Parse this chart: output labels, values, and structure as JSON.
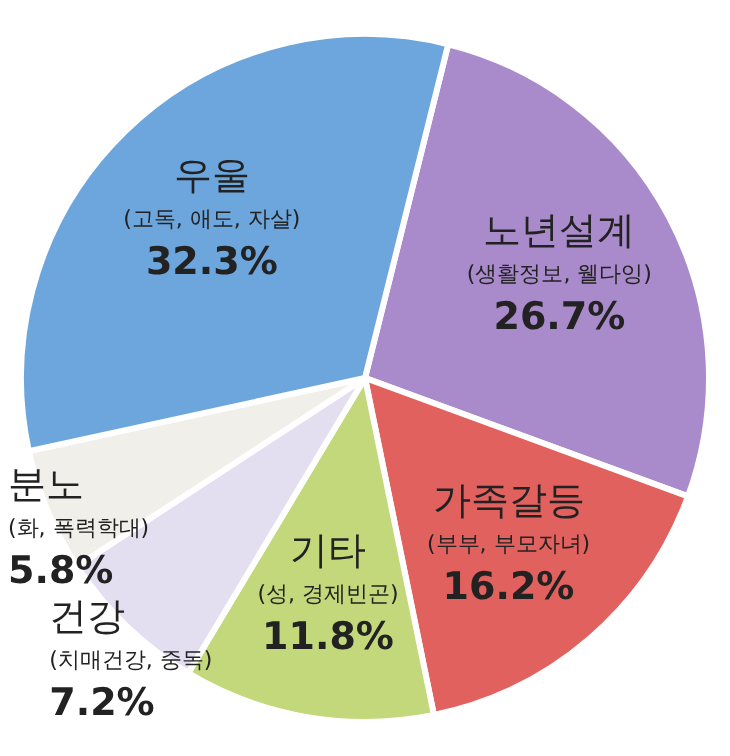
{
  "chart_data": {
    "type": "pie",
    "categories": [
      "노년설계",
      "가족갈등",
      "기타",
      "건강",
      "분노",
      "우울"
    ],
    "values": [
      26.7,
      16.2,
      11.8,
      7.2,
      5.8,
      32.3
    ],
    "colors": [
      "#a98bcb",
      "#e0615e",
      "#c3d87a",
      "#e3def0",
      "#f1efea",
      "#6ca6dc"
    ],
    "value_labels": [
      "26.7%",
      "16.2%",
      "11.8%",
      "7.2%",
      "5.8%",
      "32.3%"
    ],
    "annotations": [
      "(생활정보, 웰다잉)",
      "(부부, 부모자녀)",
      "(성, 경제빈곤)",
      "(치매건강, 중독)",
      "(화, 폭력학대)",
      "(고독, 애도, 자살)"
    ]
  }
}
